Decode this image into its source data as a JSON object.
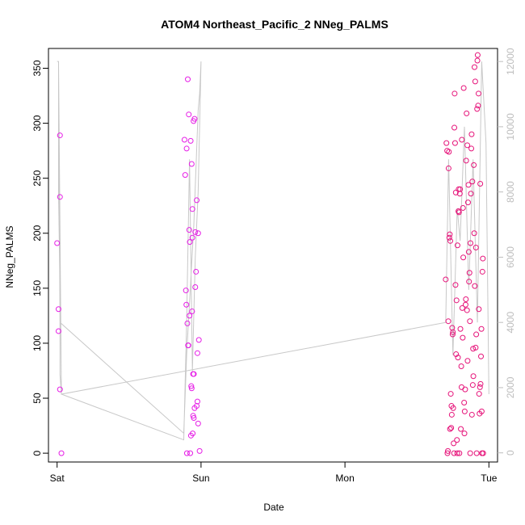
{
  "chart_data": {
    "type": "scatter",
    "title": "ATOM4 Northeast_Pacific_2 NNeg_PALMS",
    "xlabel": "Date",
    "ylabel": "NNeg_PALMS",
    "x_ticks": [
      {
        "day": 0,
        "label": "Sat"
      },
      {
        "day": 1,
        "label": "Sun"
      },
      {
        "day": 2,
        "label": "Mon"
      },
      {
        "day": 3,
        "label": "Tue"
      }
    ],
    "xlim": [
      -0.06,
      3.06
    ],
    "ylim": [
      -8,
      368
    ],
    "yticks": [
      0,
      50,
      100,
      150,
      200,
      250,
      300,
      350
    ],
    "y2lim": [
      -280,
      12400
    ],
    "y2ticks": [
      0,
      2000,
      4000,
      6000,
      8000,
      10000,
      12000
    ],
    "point_color_a": "#e61ee6",
    "point_color_b": "#e6147a",
    "line_color": "#c8c8c8",
    "series": [
      {
        "group": "a",
        "x": [
          0.0,
          0.01,
          0.01,
          0.02,
          0.02,
          0.02,
          0.03,
          0.885,
          0.89,
          0.895,
          0.898,
          0.9,
          0.902,
          0.905,
          0.908,
          0.91,
          0.912,
          0.915,
          0.918,
          0.92,
          0.922,
          0.925,
          0.928,
          0.93,
          0.932,
          0.935,
          0.938,
          0.94,
          0.942,
          0.945,
          0.948,
          0.95,
          0.955,
          0.96,
          0.965,
          0.97,
          0.975,
          0.98,
          0.99
        ],
        "y": [
          191,
          131,
          111,
          289,
          233,
          58,
          0,
          285,
          253,
          148,
          135,
          277,
          0,
          118,
          340,
          98,
          98,
          308,
          203,
          125,
          192,
          0,
          284,
          16,
          61,
          59,
          129,
          196,
          18,
          34,
          302,
          32,
          41,
          151,
          165,
          43,
          47,
          200,
          2
        ]
      },
      {
        "group": "a2",
        "x": [
          0.935,
          0.94,
          0.945,
          0.95,
          0.955,
          0.96,
          0.97,
          0.975,
          0.98,
          0.985
        ],
        "y": [
          263,
          222,
          72,
          72,
          304,
          201,
          230,
          91,
          27,
          103
        ]
      },
      {
        "group": "b",
        "x": [
          2.7,
          2.705,
          2.71,
          2.712,
          2.715,
          2.718,
          2.72,
          2.722,
          2.725,
          2.728,
          2.73,
          2.732,
          2.735,
          2.738,
          2.74,
          2.742,
          2.745,
          2.748,
          2.75,
          2.752,
          2.755,
          2.758,
          2.76,
          2.762,
          2.765,
          2.768,
          2.77,
          2.772,
          2.775,
          2.778,
          2.78,
          2.782,
          2.785,
          2.788,
          2.79,
          2.792,
          2.795,
          2.798,
          2.8,
          2.802,
          2.805,
          2.808,
          2.81,
          2.812,
          2.815,
          2.818,
          2.82,
          2.822,
          2.825,
          2.828,
          2.83,
          2.832,
          2.835,
          2.838,
          2.84,
          2.842,
          2.845,
          2.848,
          2.85,
          2.852,
          2.855,
          2.858,
          2.86,
          2.862,
          2.865,
          2.868,
          2.87,
          2.872,
          2.875,
          2.878,
          2.88,
          2.882,
          2.885,
          2.888,
          2.89,
          2.892,
          2.895,
          2.898,
          2.9,
          2.902,
          2.905,
          2.908,
          2.91,
          2.912,
          2.915,
          2.918,
          2.92,
          2.922,
          2.925,
          2.928,
          2.93,
          2.932,
          2.935,
          2.938,
          2.94,
          2.942,
          2.945,
          2.948,
          2.95,
          2.952,
          2.955,
          2.958,
          2.96
        ],
        "y": [
          158,
          282,
          275,
          0,
          2,
          120,
          259,
          274,
          196,
          199,
          22,
          193,
          54,
          23,
          43,
          35,
          114,
          108,
          110,
          41,
          9,
          0,
          296,
          327,
          282,
          153,
          237,
          90,
          139,
          12,
          0,
          189,
          87,
          220,
          240,
          219,
          0,
          236,
          240,
          113,
          22,
          79,
          60,
          285,
          132,
          105,
          223,
          178,
          332,
          46,
          18,
          38,
          58,
          135,
          140,
          266,
          309,
          130,
          280,
          84,
          228,
          244,
          183,
          156,
          164,
          120,
          0,
          191,
          236,
          277,
          290,
          35,
          247,
          62,
          95,
          70,
          262,
          200,
          351,
          152,
          338,
          96,
          187,
          108,
          0,
          313,
          357,
          362,
          316,
          327,
          131,
          54,
          36,
          60,
          245,
          63,
          88,
          113,
          38,
          0,
          165,
          177,
          0
        ]
      }
    ],
    "line_series": {
      "name": "",
      "x": [
        0.0,
        0.01,
        0.01,
        0.02,
        0.02,
        0.03,
        0.88,
        0.9,
        0.92,
        0.94,
        0.96,
        0.98,
        1.0,
        0.99,
        0.98,
        0.95,
        0.9,
        0.88,
        0.02,
        0.01,
        0.03,
        2.7,
        2.72,
        2.75,
        2.78,
        2.8,
        2.83,
        2.86,
        2.89,
        2.92,
        2.95,
        2.98,
        3.0
      ],
      "y2": [
        12000,
        12000,
        8000,
        5000,
        2400,
        1800,
        400,
        4000,
        9000,
        2500,
        6000,
        8000,
        12000,
        11000,
        10500,
        7000,
        3000,
        600,
        4000,
        12000,
        1800,
        4000,
        9000,
        3000,
        7500,
        6500,
        10000,
        5000,
        9000,
        4000,
        12000,
        9500,
        1800
      ]
    }
  }
}
